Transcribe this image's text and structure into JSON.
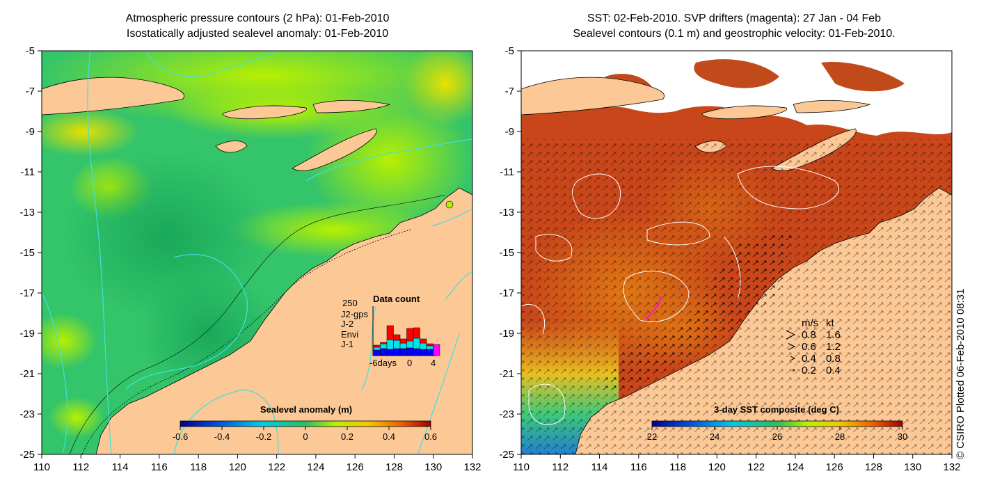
{
  "left_panel": {
    "title_line1": "Atmospheric pressure contours (2 hPa): 01-Feb-2010",
    "title_line2": "Isostatically adjusted sealevel anomaly: 01-Feb-2010",
    "colorbar": {
      "label": "Sealevel anomaly (m)",
      "ticks": [
        "-0.6",
        "-0.4",
        "-0.2",
        "0",
        "0.2",
        "0.4",
        "0.6"
      ]
    },
    "data_count": {
      "title": "Data count",
      "max_label": "250",
      "legend": [
        {
          "name": "J2-gps",
          "color": "#ff00ff"
        },
        {
          "name": "J-2",
          "color": "#ff0000"
        },
        {
          "name": "Envi",
          "color": "#00e5e5"
        },
        {
          "name": "J-1",
          "color": "#0000ff"
        }
      ],
      "x_ticks": [
        "-6days",
        "0",
        "4"
      ]
    }
  },
  "right_panel": {
    "title_line1": "SST: 02-Feb-2010. SVP drifters (magenta): 27 Jan - 04 Feb",
    "title_line2": "Sealevel contours (0.1 m) and geostrophic velocity: 01-Feb-2010.",
    "colorbar": {
      "label": "3-day SST composite (deg C)",
      "ticks": [
        "22",
        "24",
        "26",
        "28",
        "30"
      ]
    },
    "velocity_legend": {
      "header_ms": "m/s",
      "header_kt": "kt",
      "rows": [
        {
          "ms": "0.8",
          "kt": "1.6"
        },
        {
          "ms": "0.6",
          "kt": "1.2"
        },
        {
          "ms": "0.4",
          "kt": "0.8"
        },
        {
          "ms": "0.2",
          "kt": "0.4"
        }
      ]
    }
  },
  "axes": {
    "lon_ticks": [
      "110",
      "112",
      "114",
      "116",
      "118",
      "120",
      "122",
      "124",
      "126",
      "128",
      "130",
      "132"
    ],
    "lat_ticks": [
      "-5",
      "-7",
      "-9",
      "-11",
      "-13",
      "-15",
      "-17",
      "-19",
      "-21",
      "-23",
      "-25"
    ]
  },
  "credit": "© CSIRO Plotted 06-Feb-2010 08:31",
  "colors": {
    "land": "#fcc896",
    "ocean_green": "#2ec86a",
    "sst_red": "#c83c14",
    "contour_cyan": "#40e0e0"
  }
}
